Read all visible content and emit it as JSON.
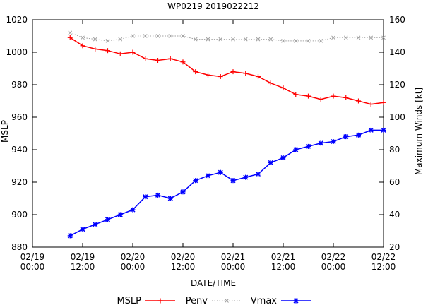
{
  "chart_data": {
    "type": "line",
    "title": "WP0219 2019022212",
    "xlabel": "DATE/TIME",
    "ylabel_left": "MSLP",
    "ylabel_right": "Maximum Winds [kt]",
    "ylim_left": [
      880,
      1020
    ],
    "ylim_right": [
      20,
      160
    ],
    "xlim": [
      0,
      84
    ],
    "x_unit": "hours since 02/19 00:00",
    "left_ticks": [
      880,
      900,
      920,
      940,
      960,
      980,
      1000,
      1020
    ],
    "right_ticks": [
      20,
      40,
      60,
      80,
      100,
      120,
      140,
      160
    ],
    "x_ticks": [
      {
        "x": 0,
        "line1": "02/19",
        "line2": "00:00"
      },
      {
        "x": 12,
        "line1": "02/19",
        "line2": "12:00"
      },
      {
        "x": 24,
        "line1": "02/20",
        "line2": "00:00"
      },
      {
        "x": 36,
        "line1": "02/20",
        "line2": "12:00"
      },
      {
        "x": 48,
        "line1": "02/21",
        "line2": "00:00"
      },
      {
        "x": 60,
        "line1": "02/21",
        "line2": "12:00"
      },
      {
        "x": 72,
        "line1": "02/22",
        "line2": "00:00"
      },
      {
        "x": 84,
        "line1": "02/22",
        "line2": "12:00"
      }
    ],
    "x": [
      9,
      12,
      15,
      18,
      21,
      24,
      27,
      30,
      33,
      36,
      39,
      42,
      45,
      48,
      51,
      54,
      57,
      60,
      63,
      66,
      69,
      72,
      75,
      78,
      81,
      84
    ],
    "series": [
      {
        "name": "MSLP",
        "axis": "left",
        "color": "#ff0000",
        "marker": "plus",
        "dash": "",
        "values": [
          1009,
          1004,
          1002,
          1001,
          999,
          1000,
          996,
          995,
          996,
          994,
          988,
          986,
          985,
          988,
          987,
          985,
          981,
          978,
          974,
          973,
          971,
          973,
          972,
          970,
          968,
          969
        ]
      },
      {
        "name": "Penv",
        "axis": "left",
        "color": "#a0a0a0",
        "marker": "x",
        "dash": "1.5,2",
        "values": [
          1012,
          1009,
          1008,
          1007,
          1008,
          1010,
          1010,
          1010,
          1010,
          1010,
          1008,
          1008,
          1008,
          1008,
          1008,
          1008,
          1008,
          1007,
          1007,
          1007,
          1007,
          1009,
          1009,
          1009,
          1009,
          1009
        ]
      },
      {
        "name": "Vmax",
        "axis": "right",
        "color": "#0000ff",
        "marker": "star",
        "dash": "",
        "values": [
          27,
          31,
          34,
          37,
          40,
          43,
          51,
          52,
          50,
          54,
          61,
          64,
          66,
          61,
          63,
          65,
          72,
          75,
          80,
          82,
          84,
          85,
          88,
          89,
          92,
          92
        ]
      }
    ],
    "legend": {
      "position": "bottom",
      "entries": [
        "MSLP",
        "Penv",
        "Vmax"
      ]
    }
  }
}
